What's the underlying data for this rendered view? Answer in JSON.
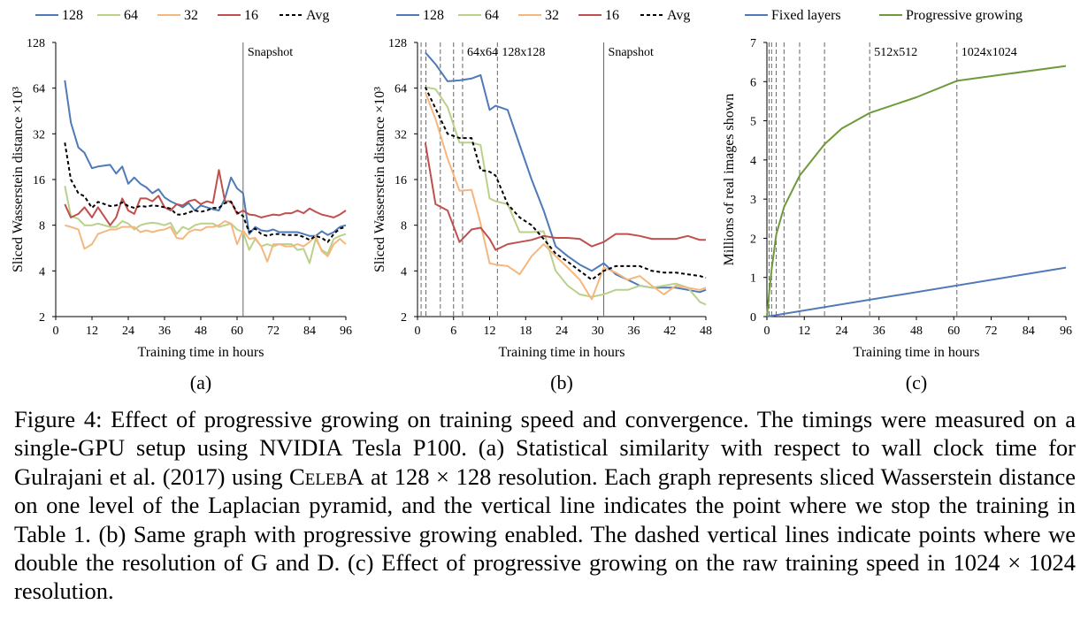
{
  "colors": {
    "s128": "#4f7ab8",
    "s64": "#b9d18a",
    "s32": "#f5b77e",
    "s16": "#c0504d",
    "avg": "#000000",
    "fixed": "#4f7ab8",
    "progressive": "#6f9a3b",
    "vline": "#666666"
  },
  "chart_data": [
    {
      "type": "line",
      "panel_label": "(a)",
      "xlabel": "Training time in hours",
      "ylabel": "Sliced Wasserstein distance ×10³",
      "yscale": "log2",
      "xlim": [
        0,
        96
      ],
      "ylim": [
        2,
        128
      ],
      "xticks": [
        0,
        12,
        24,
        36,
        48,
        60,
        72,
        84,
        96
      ],
      "yticks": [
        2,
        4,
        8,
        16,
        32,
        64,
        128
      ],
      "legend": [
        "128",
        "64",
        "32",
        "16",
        "Avg"
      ],
      "legend_position": "top",
      "annotations": [
        {
          "text": "Snapshot",
          "x": 62,
          "style": "solid"
        }
      ],
      "x": [
        3,
        5,
        7.5,
        9.5,
        12,
        14,
        18,
        20,
        22,
        24,
        26,
        28,
        30,
        32,
        34,
        36,
        38,
        40,
        42,
        44,
        46,
        48,
        50,
        52,
        54,
        56,
        58,
        60,
        62,
        64,
        66,
        68,
        70,
        72,
        74,
        76,
        78,
        80,
        82,
        84,
        86,
        88,
        90,
        92,
        94,
        96
      ],
      "series": [
        {
          "name": "128",
          "style": "solid",
          "values": [
            72,
            38,
            26,
            24,
            19,
            19.5,
            20,
            17.5,
            19.5,
            15,
            16.5,
            15,
            14.2,
            13,
            13.8,
            12.2,
            11.5,
            11,
            10.5,
            11.2,
            10,
            10.8,
            10.5,
            10.2,
            10,
            12,
            16.5,
            14,
            13,
            7,
            7.8,
            7.4,
            7.3,
            7.5,
            7.2,
            7.2,
            7.2,
            7.2,
            7,
            6.8,
            6.8,
            7.3,
            6.9,
            7.2,
            7.8,
            8
          ]
        },
        {
          "name": "64",
          "style": "solid",
          "values": [
            14.5,
            9.2,
            8.8,
            8,
            8,
            8.2,
            7.8,
            7.8,
            8.5,
            8.2,
            7.5,
            8,
            8.2,
            8.3,
            8.2,
            8,
            8.3,
            7,
            7.8,
            7.5,
            8,
            8.2,
            8.2,
            8.2,
            7.8,
            8,
            8.2,
            7.5,
            7.2,
            5.5,
            6.5,
            5.8,
            6,
            5.8,
            6,
            6,
            6,
            5.5,
            5.6,
            4.5,
            6.5,
            5.5,
            5.2,
            6.5,
            6.8,
            7
          ]
        },
        {
          "name": "32",
          "style": "solid",
          "values": [
            8,
            7.8,
            7.5,
            5.6,
            6,
            7,
            7.5,
            7.5,
            7.8,
            7.8,
            7.8,
            7.2,
            7.4,
            7.2,
            7.4,
            7.5,
            7.8,
            6.6,
            6.5,
            7.2,
            7.5,
            7.4,
            7.8,
            7.8,
            8,
            8.5,
            8.2,
            6,
            7.4,
            6.5,
            6.6,
            5.8,
            4.6,
            6,
            6,
            5.8,
            5.8,
            6,
            5.8,
            6.2,
            6.8,
            5.4,
            5,
            6,
            6.5,
            6
          ]
        },
        {
          "name": "16",
          "style": "solid",
          "values": [
            11,
            9,
            9.5,
            10.5,
            9,
            10.5,
            8,
            9,
            12,
            10,
            9.5,
            12,
            12,
            11.5,
            12.5,
            10.5,
            10,
            11,
            10.8,
            11.5,
            11.8,
            11,
            11.5,
            11.2,
            18.5,
            11.5,
            11.5,
            9.5,
            10,
            9.4,
            9.3,
            9,
            9.2,
            9.4,
            9.3,
            9.6,
            9.6,
            10,
            9.6,
            10.3,
            9.8,
            9.4,
            9.2,
            9,
            9.4,
            10
          ]
        },
        {
          "name": "Avg",
          "style": "dashed",
          "values": [
            28,
            16,
            13,
            12.4,
            10.4,
            11.4,
            10.7,
            10.8,
            11.3,
            10.7,
            10.4,
            10.7,
            10.6,
            10.8,
            10.7,
            10.5,
            10.3,
            9.4,
            9.4,
            9.7,
            10,
            9.8,
            10,
            10.4,
            10.4,
            11.2,
            11.4,
            9.7,
            9.2,
            7.2,
            7.6,
            7,
            6.8,
            7,
            7,
            6.9,
            6.9,
            6.9,
            6.7,
            6.4,
            6.8,
            6.6,
            6.2,
            7,
            7.6,
            7.8
          ]
        }
      ]
    },
    {
      "type": "line",
      "panel_label": "(b)",
      "xlabel": "Training time in hours",
      "ylabel": "Sliced Wasserstein distance ×10³",
      "yscale": "log2",
      "xlim": [
        0,
        48
      ],
      "ylim": [
        2,
        128
      ],
      "xticks": [
        0,
        6,
        12,
        18,
        24,
        30,
        36,
        42,
        48
      ],
      "yticks": [
        2,
        4,
        8,
        16,
        32,
        64,
        128
      ],
      "legend": [
        "128",
        "64",
        "32",
        "16",
        "Avg"
      ],
      "legend_position": "top",
      "resolution_lines": [
        0.6,
        1.4,
        3.8,
        6,
        7.5,
        13.3
      ],
      "annotations": [
        {
          "text": "64x64",
          "x": 7.5,
          "style": "dashed"
        },
        {
          "text": "128x128",
          "x": 13.3,
          "style": "dashed"
        },
        {
          "text": "Snapshot",
          "x": 31,
          "style": "solid"
        }
      ],
      "series": [
        {
          "name": "128",
          "style": "solid",
          "x": [
            1.3,
            3,
            5,
            7,
            9,
            10.5,
            12,
            13,
            15,
            17,
            19,
            21,
            23,
            25,
            27,
            29,
            31,
            33,
            35,
            37,
            39,
            41,
            43,
            45,
            47,
            48
          ],
          "values": [
            110,
            92,
            71,
            72,
            74,
            78,
            46,
            49,
            46,
            27,
            16,
            10,
            5.8,
            5,
            4.4,
            4,
            4.5,
            3.8,
            3.5,
            3.2,
            3.1,
            3.1,
            3.1,
            3,
            2.9,
            3.0
          ]
        },
        {
          "name": "64",
          "style": "solid",
          "x": [
            1.3,
            3,
            5,
            7,
            9,
            10.5,
            12,
            13,
            15,
            17,
            19,
            21,
            23,
            25,
            27,
            29,
            31,
            33,
            35,
            37,
            39,
            41,
            43,
            45,
            47,
            48
          ],
          "values": [
            65,
            63,
            48,
            28,
            28,
            27,
            12,
            11.5,
            11,
            7.2,
            7.2,
            7.3,
            4,
            3.2,
            2.8,
            2.7,
            2.8,
            3,
            3,
            3.2,
            3.1,
            3.2,
            3.3,
            3.1,
            2.5,
            2.4
          ]
        },
        {
          "name": "32",
          "style": "solid",
          "x": [
            1.3,
            3,
            5,
            7,
            9,
            10.5,
            12,
            13,
            15,
            17,
            19,
            21,
            23,
            25,
            27,
            29,
            31,
            33,
            35,
            37,
            39,
            41,
            43,
            45,
            47,
            48
          ],
          "values": [
            60,
            40,
            22,
            13.5,
            13.7,
            8.2,
            4.5,
            4.4,
            4.3,
            3.8,
            5,
            6,
            5,
            4.2,
            3.5,
            2.6,
            4.2,
            3.9,
            3.5,
            3.7,
            3.2,
            2.8,
            3.2,
            3.1,
            3,
            3.1
          ]
        },
        {
          "name": "16",
          "style": "solid",
          "x": [
            1.3,
            3,
            5,
            7,
            9,
            10.5,
            12,
            13,
            15,
            17,
            19,
            21,
            23,
            25,
            27,
            29,
            31,
            33,
            35,
            37,
            39,
            41,
            43,
            45,
            47,
            48
          ],
          "values": [
            28,
            11,
            10,
            6.2,
            7.5,
            7.7,
            6.5,
            5.5,
            6,
            6.2,
            6.4,
            6.8,
            6.6,
            6.6,
            6.5,
            5.8,
            6.2,
            7,
            7,
            6.8,
            6.5,
            6.5,
            6.5,
            6.8,
            6.4,
            6.4
          ]
        },
        {
          "name": "Avg",
          "style": "dashed",
          "x": [
            1.3,
            3,
            5,
            7,
            9,
            10.5,
            12,
            13,
            15,
            17,
            19,
            21,
            23,
            25,
            27,
            29,
            31,
            33,
            35,
            37,
            39,
            41,
            43,
            45,
            47,
            48
          ],
          "values": [
            65,
            47,
            32,
            30,
            30,
            18.5,
            18,
            17,
            11,
            9,
            8,
            6.5,
            5.2,
            4.6,
            4,
            3.5,
            4,
            4.3,
            4.3,
            4.3,
            4,
            3.9,
            3.9,
            3.8,
            3.7,
            3.6
          ]
        }
      ]
    },
    {
      "type": "line",
      "panel_label": "(c)",
      "xlabel": "Training time in hours",
      "ylabel": "Millions of real images shown",
      "xlim": [
        0,
        96
      ],
      "ylim": [
        0,
        7
      ],
      "xticks": [
        0,
        12,
        24,
        36,
        48,
        60,
        72,
        84,
        96
      ],
      "yticks": [
        0,
        1,
        2,
        3,
        4,
        5,
        6,
        7
      ],
      "legend": [
        "Fixed layers",
        "Progressive growing"
      ],
      "legend_position": "top",
      "resolution_lines": [
        0.7,
        1.5,
        3,
        5.5,
        10.5,
        18.5,
        33,
        61
      ],
      "annotations": [
        {
          "text": "512x512",
          "x": 33,
          "style": "dashed"
        },
        {
          "text": "1024x1024",
          "x": 61,
          "style": "dashed"
        }
      ],
      "series": [
        {
          "name": "Fixed layers",
          "x": [
            0,
            96
          ],
          "values": [
            0,
            1.25
          ]
        },
        {
          "name": "Progressive growing",
          "x": [
            0,
            0.7,
            1.5,
            3,
            5.5,
            10.5,
            18.5,
            24,
            33,
            48,
            61,
            96
          ],
          "values": [
            0,
            0.6,
            1.2,
            2.1,
            2.8,
            3.6,
            4.4,
            4.8,
            5.2,
            5.6,
            6.02,
            6.4
          ]
        }
      ]
    }
  ],
  "caption": {
    "part1": "Figure 4:  Effect of progressive growing on training speed and convergence.  The timings were measured on a single-GPU setup using NVIDIA Tesla P100.  (a) Statistical similarity with respect to wall clock time for Gulrajani et al. (2017) using ",
    "celeba": "CelebA",
    "part2": " at 128 × 128 resolution.  Each graph represents sliced Wasserstein distance on one level of the Laplacian pyramid, and the vertical line indicates the point where we stop the training in Table 1.  (b) Same graph with progressive growing enabled.  The dashed vertical lines indicate points where we double the resolution of G and D.  (c) Effect of progressive growing on the raw training speed in 1024 × 1024 resolution."
  }
}
